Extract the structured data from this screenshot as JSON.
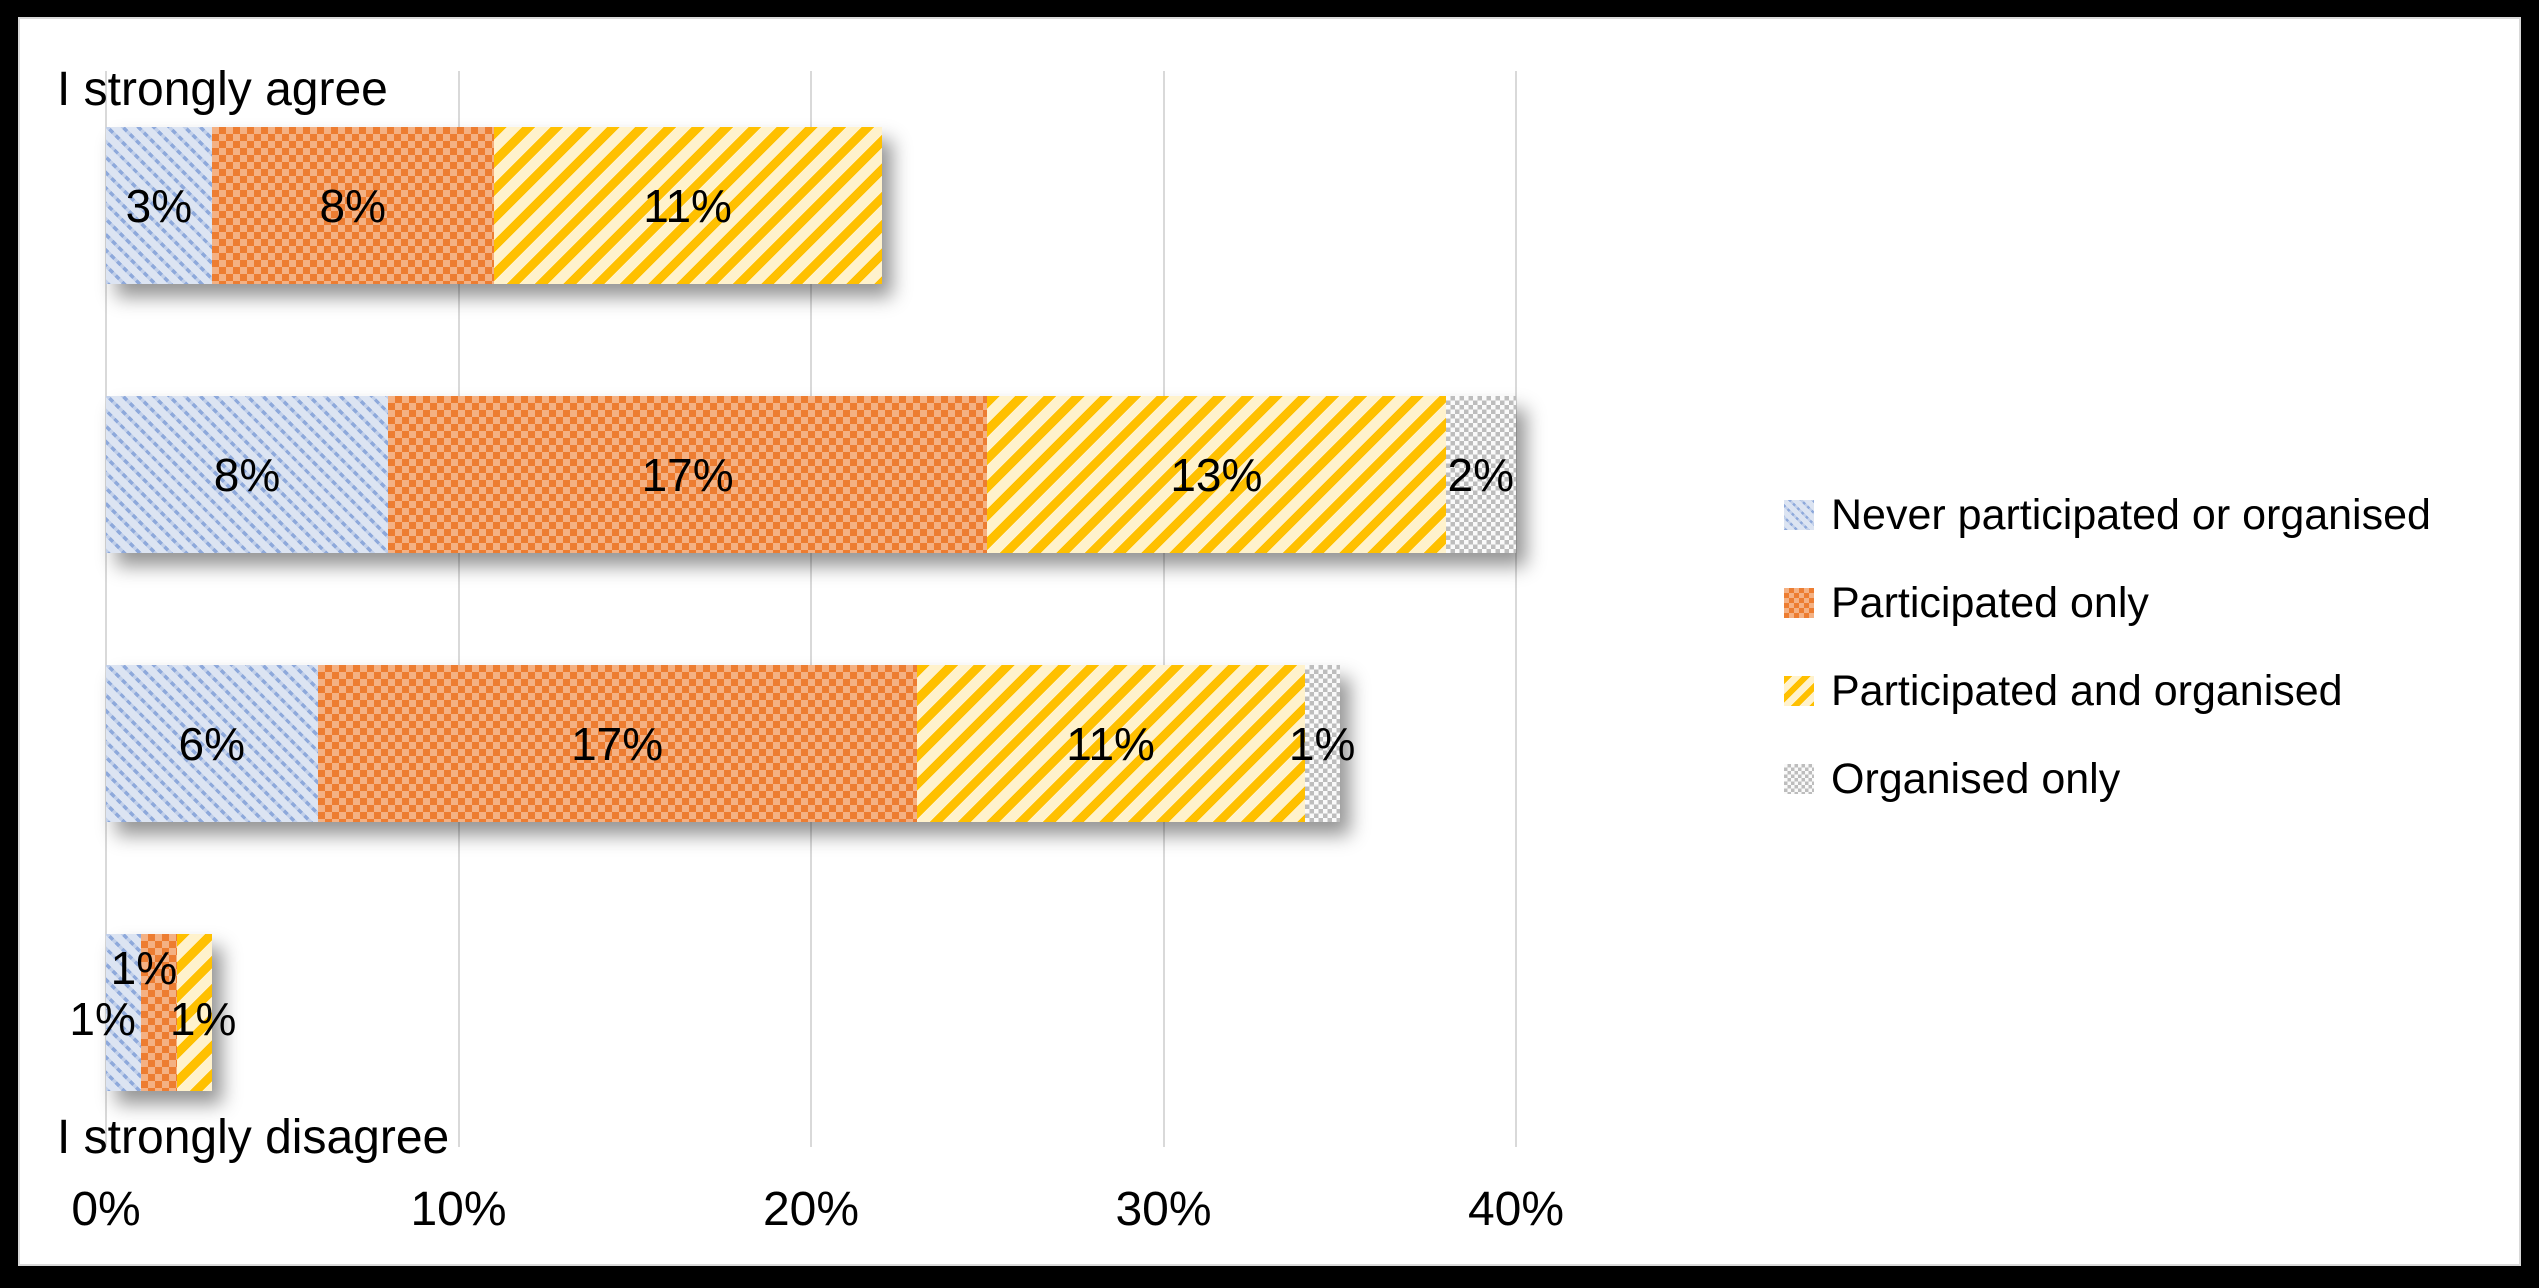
{
  "chart_data": {
    "type": "bar",
    "orientation": "horizontal",
    "stacked": true,
    "title": "",
    "category_axis": {
      "top_label": "I strongly agree",
      "bottom_label": "I strongly disagree"
    },
    "x_axis": {
      "ticks": [
        "0%",
        "10%",
        "20%",
        "30%",
        "40%"
      ],
      "tick_values": [
        0,
        10,
        20,
        30,
        40
      ],
      "range": [
        0,
        40
      ],
      "gridlines": true
    },
    "series": [
      {
        "name": "Never participated or organised",
        "pattern": "diagonal-down-dashes",
        "fg": "#8EA9DB",
        "bg": "#DCE4F2",
        "values": [
          3,
          8,
          6,
          1
        ],
        "labels": [
          "3%",
          "8%",
          "6%",
          "1%"
        ]
      },
      {
        "name": "Participated only",
        "pattern": "checker",
        "fg": "#ED7D31",
        "bg": "#F4B183",
        "values": [
          8,
          17,
          17,
          1
        ],
        "labels": [
          "8%",
          "17%",
          "17%",
          "1%"
        ]
      },
      {
        "name": "Participated and organised",
        "pattern": "diagonal-up-stripes",
        "fg": "#FFC000",
        "bg": "#FFF2CC",
        "values": [
          11,
          13,
          11,
          1
        ],
        "labels": [
          "11%",
          "13%",
          "11%",
          "1%"
        ]
      },
      {
        "name": "Organised only",
        "pattern": "fine-checker",
        "fg": "#BDBDBD",
        "bg": "#FAFAFA",
        "values": [
          0,
          2,
          1,
          0
        ],
        "labels": [
          "",
          "2%",
          "1%",
          ""
        ]
      }
    ],
    "legend": {
      "position": "right"
    }
  },
  "colors": {
    "gridline": "#D9D9D9",
    "chart_border": "#D9D9D9",
    "frame": "#000000",
    "text": "#000000"
  }
}
